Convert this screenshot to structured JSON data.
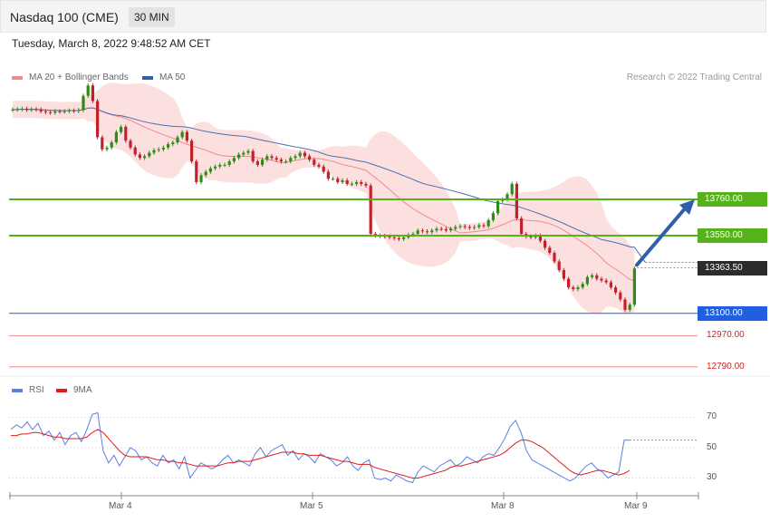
{
  "header": {
    "title": "Nasdaq 100 (CME)",
    "interval": "30 MIN",
    "date": "Tuesday, March 8, 2022 9:48:52 AM CET"
  },
  "legend": {
    "ma20": {
      "label": "MA 20 + Bollinger Bands",
      "color": "#f28b8b"
    },
    "ma50": {
      "label": "MA 50",
      "color": "#3460a8"
    },
    "rsi": {
      "label": "RSI",
      "color": "#5b7fe0"
    },
    "rsi9ma": {
      "label": "9MA",
      "color": "#e01b1b"
    }
  },
  "credit": "Research © 2022 Trading Central",
  "colors": {
    "up": "#2e8b18",
    "down": "#c4202a",
    "resistance": "#55b21a",
    "pivot": "#1f5fe0",
    "support": "#f2a0a0",
    "arrow": "#2e5fa8"
  },
  "levels": {
    "r1": {
      "value": "13760.00",
      "kind": "resistance"
    },
    "r2": {
      "value": "13550.00",
      "kind": "resistance"
    },
    "last": {
      "value": "13363.50",
      "kind": "last"
    },
    "pivot": {
      "value": "13100.00",
      "kind": "pivot"
    },
    "s1": {
      "value": "12970.00",
      "kind": "support"
    },
    "s2": {
      "value": "12790.00",
      "kind": "support"
    }
  },
  "rsi_axis": {
    "ticks": [
      "70",
      "50",
      "30"
    ]
  },
  "x_axis": {
    "labels": [
      "Mar 4",
      "Mar 5",
      "Mar 8",
      "Mar 9"
    ]
  },
  "chart_data": {
    "type": "candlestick",
    "title": "Nasdaq 100 (CME)",
    "timeframe": "30 MIN",
    "x_ticks": [
      "Mar 4",
      "Mar 5",
      "Mar 8",
      "Mar 9"
    ],
    "y_range": [
      12730,
      14450
    ],
    "close_estimates": [
      14280,
      14282,
      14285,
      14278,
      14283,
      14280,
      14270,
      14265,
      14262,
      14270,
      14268,
      14270,
      14275,
      14272,
      14278,
      14360,
      14420,
      14330,
      14120,
      14050,
      14060,
      14090,
      14150,
      14180,
      14100,
      14060,
      14020,
      14000,
      14010,
      14030,
      14045,
      14050,
      14060,
      14080,
      14090,
      14120,
      14150,
      14100,
      13980,
      13860,
      13900,
      13920,
      13940,
      13950,
      13960,
      13960,
      13980,
      14000,
      14020,
      14030,
      14040,
      13980,
      13960,
      13990,
      14010,
      14000,
      13990,
      13980,
      13980,
      14000,
      14010,
      14030,
      14010,
      13990,
      13960,
      13950,
      13920,
      13880,
      13880,
      13860,
      13870,
      13850,
      13850,
      13860,
      13850,
      13840,
      13560,
      13550,
      13548,
      13545,
      13540,
      13535,
      13530,
      13540,
      13555,
      13560,
      13580,
      13575,
      13570,
      13580,
      13590,
      13588,
      13580,
      13590,
      13600,
      13605,
      13600,
      13595,
      13600,
      13610,
      13605,
      13640,
      13680,
      13750,
      13760,
      13790,
      13850,
      13650,
      13560,
      13545,
      13540,
      13550,
      13520,
      13480,
      13450,
      13400,
      13350,
      13300,
      13250,
      13240,
      13250,
      13270,
      13310,
      13320,
      13300,
      13290,
      13280,
      13250,
      13220,
      13180,
      13120,
      13150,
      13360
    ],
    "indicators": {
      "MA 20 + Bollinger Bands": "moving average with shaded bands",
      "MA 50": "moving average line"
    },
    "levels": [
      13760.0,
      13550.0,
      13363.5,
      13100.0,
      12970.0,
      12790.0
    ],
    "arrow": {
      "from": 13380,
      "to": 13760,
      "direction": "up"
    },
    "rsi": {
      "series": [
        "RSI",
        "9MA"
      ],
      "y_ticks": [
        70,
        50,
        30
      ],
      "rsi_values": [
        62,
        65,
        63,
        67,
        62,
        66,
        58,
        61,
        55,
        60,
        52,
        58,
        60,
        54,
        62,
        72,
        73,
        48,
        40,
        45,
        38,
        44,
        50,
        48,
        42,
        44,
        40,
        38,
        45,
        40,
        42,
        36,
        44,
        30,
        35,
        40,
        38,
        36,
        38,
        42,
        45,
        40,
        42,
        40,
        38,
        46,
        50,
        44,
        48,
        50,
        52,
        45,
        48,
        42,
        46,
        44,
        40,
        46,
        44,
        42,
        38,
        40,
        44,
        38,
        35,
        40,
        42,
        30,
        29,
        30,
        28,
        32,
        30,
        28,
        27,
        34,
        38,
        36,
        34,
        38,
        40,
        42,
        38,
        40,
        44,
        42,
        40,
        44,
        46,
        45,
        50,
        56,
        64,
        68,
        60,
        48,
        42,
        40,
        38,
        36,
        34,
        32,
        30,
        28,
        30,
        34,
        38,
        40,
        36,
        34,
        30,
        32,
        34,
        55,
        55
      ],
      "ma9_values": [
        58,
        58,
        59,
        59,
        60,
        60,
        59,
        58,
        57,
        57,
        56,
        56,
        56,
        56,
        57,
        60,
        62,
        60,
        56,
        52,
        48,
        45,
        44,
        44,
        44,
        44,
        43,
        42,
        42,
        41,
        41,
        40,
        40,
        39,
        38,
        38,
        38,
        38,
        38,
        39,
        40,
        40,
        41,
        41,
        41,
        42,
        43,
        44,
        45,
        46,
        47,
        47,
        47,
        46,
        46,
        45,
        45,
        45,
        44,
        43,
        42,
        41,
        41,
        40,
        39,
        39,
        39,
        37,
        36,
        35,
        34,
        33,
        32,
        31,
        30,
        30,
        31,
        32,
        33,
        34,
        35,
        37,
        38,
        38,
        39,
        40,
        41,
        42,
        43,
        44,
        45,
        47,
        50,
        53,
        55,
        55,
        54,
        52,
        50,
        47,
        44,
        41,
        38,
        35,
        33,
        32,
        33,
        34,
        35,
        35,
        34,
        33,
        32,
        33,
        35
      ]
    }
  }
}
